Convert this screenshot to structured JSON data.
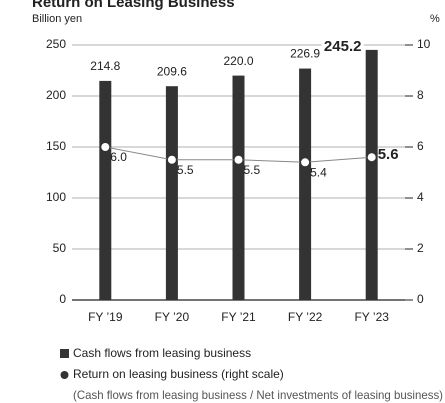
{
  "chart_data": {
    "type": "bar",
    "title": "Return on Leasing Business",
    "ylabel": "Billion yen",
    "y2label": "%",
    "categories": [
      "FY ’19",
      "FY ’20",
      "FY ’21",
      "FY ’22",
      "FY ’23"
    ],
    "series": [
      {
        "name": "Cash flows from leasing business",
        "color": "#333333",
        "values": [
          214.8,
          209.6,
          220.0,
          226.9,
          245.2
        ],
        "value_labels": [
          "214.8",
          "209.6",
          "220.0",
          "226.9",
          "245.2"
        ]
      },
      {
        "name": "Return on leasing business (right scale)",
        "color": "#888888",
        "axis": "y2",
        "values": [
          6.0,
          5.5,
          5.5,
          5.4,
          5.6
        ],
        "value_labels": [
          "6.0",
          "5.5",
          "5.5",
          "5.4",
          "5.6"
        ]
      }
    ],
    "ylim": [
      0,
      250
    ],
    "yticks": [
      0,
      50,
      100,
      150,
      200,
      250
    ],
    "y2lim": [
      0,
      10
    ],
    "y2ticks": [
      0,
      2,
      4,
      6,
      8,
      10
    ],
    "grid": true,
    "legend_note": "(Cash flows from leasing business / Net investments of leasing business)"
  }
}
